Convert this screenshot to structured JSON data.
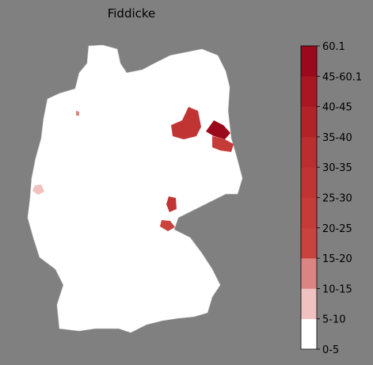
{
  "title": "Fiddicke",
  "colorbar": {
    "ticks": [
      "0-5",
      "5-10",
      "10-15",
      "15-20",
      "20-25",
      "25-30",
      "30-35",
      "35-40",
      "40-45",
      "45-60.1",
      "60.1"
    ],
    "colors": [
      "#ffffff",
      "#efc2c0",
      "#da8581",
      "#c8423e",
      "#c43b38",
      "#c03533",
      "#ba2e2e",
      "#b22328",
      "#a91822",
      "#9a0a1c"
    ]
  }
}
